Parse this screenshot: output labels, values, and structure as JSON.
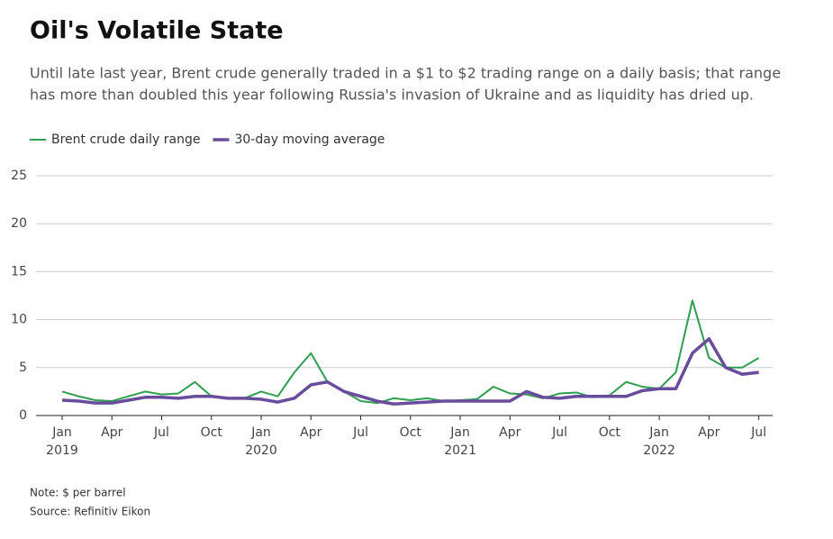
{
  "chart_data": {
    "type": "line",
    "title": "Oil's Volatile State",
    "subtitle_lines": [
      "Until late last year, Brent crude generally traded in a $1 to $2 trading range on a daily basis; that range",
      "has more than doubled this year following Russia's invasion of Ukraine and as liquidity has dried up."
    ],
    "notes": [
      "Note: $ per barrel",
      "Source: Refinitiv Eikon"
    ],
    "x": [
      "2019-01",
      "2019-02",
      "2019-03",
      "2019-04",
      "2019-05",
      "2019-06",
      "2019-07",
      "2019-08",
      "2019-09",
      "2019-10",
      "2019-11",
      "2019-12",
      "2020-01",
      "2020-02",
      "2020-03",
      "2020-04",
      "2020-05",
      "2020-06",
      "2020-07",
      "2020-08",
      "2020-09",
      "2020-10",
      "2020-11",
      "2020-12",
      "2021-01",
      "2021-02",
      "2021-03",
      "2021-04",
      "2021-05",
      "2021-06",
      "2021-07",
      "2021-08",
      "2021-09",
      "2021-10",
      "2021-11",
      "2021-12",
      "2022-01",
      "2022-02",
      "2022-03",
      "2022-04",
      "2022-05",
      "2022-06",
      "2022-07"
    ],
    "series": [
      {
        "name": "Brent crude daily range",
        "color": "#2e9e4f",
        "width": 2,
        "values": [
          2.5,
          2.0,
          1.6,
          1.5,
          2.0,
          2.5,
          2.2,
          2.3,
          3.5,
          2.0,
          1.8,
          1.8,
          2.5,
          2.0,
          4.5,
          6.5,
          3.5,
          2.5,
          1.5,
          1.3,
          1.8,
          1.6,
          1.8,
          1.5,
          1.6,
          1.7,
          3.0,
          2.3,
          2.2,
          1.8,
          2.3,
          2.4,
          1.9,
          2.1,
          3.5,
          3.0,
          2.8,
          4.5,
          12.0,
          6.0,
          5.0,
          5.0,
          6.0
        ]
      },
      {
        "name": "30-day moving average",
        "color": "#6a4c9c",
        "width": 3.5,
        "values": [
          1.6,
          1.5,
          1.3,
          1.3,
          1.6,
          1.9,
          1.9,
          1.8,
          2.0,
          2.0,
          1.8,
          1.8,
          1.7,
          1.4,
          1.8,
          3.2,
          3.5,
          2.5,
          2.0,
          1.5,
          1.2,
          1.3,
          1.4,
          1.5,
          1.5,
          1.5,
          1.5,
          1.5,
          2.5,
          1.9,
          1.8,
          2.0,
          2.0,
          2.0,
          2.0,
          2.6,
          2.8,
          2.8,
          6.5,
          8.0,
          5.0,
          4.3,
          4.5
        ]
      }
    ],
    "xlim": [
      "2019-01",
      "2022-08"
    ],
    "xticks": [
      {
        "value": "2019-01",
        "label": "Jan"
      },
      {
        "value": "2019-04",
        "label": "Apr"
      },
      {
        "value": "2019-07",
        "label": "Jul"
      },
      {
        "value": "2019-10",
        "label": "Oct"
      },
      {
        "value": "2020-01",
        "label": "Jan"
      },
      {
        "value": "2020-04",
        "label": "Apr"
      },
      {
        "value": "2020-07",
        "label": "Jul"
      },
      {
        "value": "2020-10",
        "label": "Oct"
      },
      {
        "value": "2021-01",
        "label": "Jan"
      },
      {
        "value": "2021-04",
        "label": "Apr"
      },
      {
        "value": "2021-07",
        "label": "Jul"
      },
      {
        "value": "2021-10",
        "label": "Oct"
      },
      {
        "value": "2022-01",
        "label": "Jan"
      },
      {
        "value": "2022-04",
        "label": "Apr"
      },
      {
        "value": "2022-07",
        "label": "Jul"
      }
    ],
    "year_labels": [
      {
        "value": "2019-01",
        "label": "2019"
      },
      {
        "value": "2020-01",
        "label": "2020"
      },
      {
        "value": "2021-01",
        "label": "2021"
      },
      {
        "value": "2022-01",
        "label": "2022"
      }
    ],
    "ylim": [
      0,
      26
    ],
    "yticks": [
      0,
      5,
      10,
      15,
      20,
      25
    ],
    "grid": true
  }
}
